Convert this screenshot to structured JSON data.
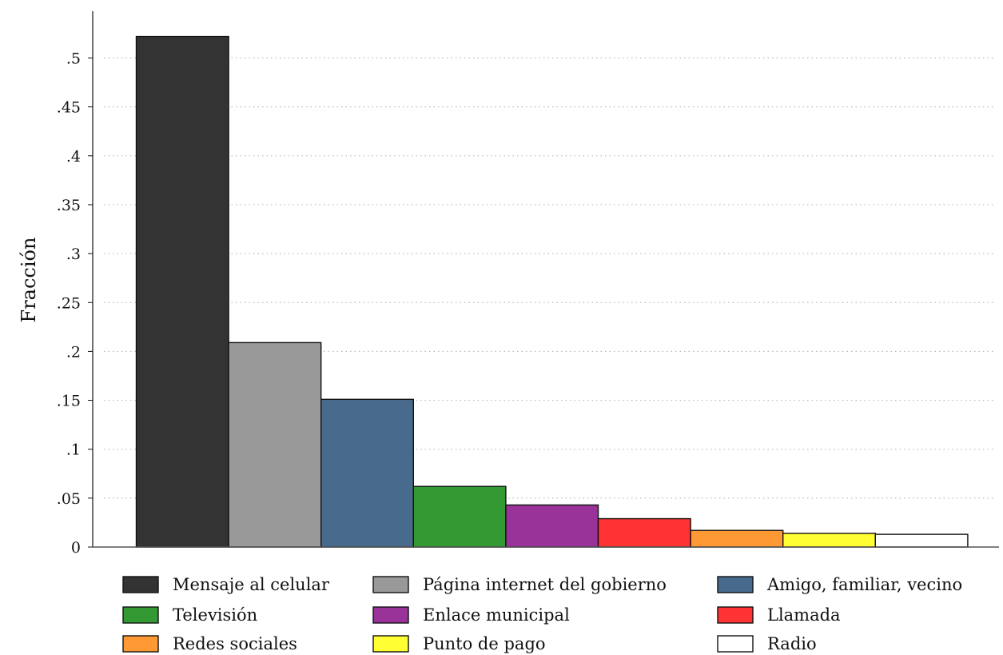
{
  "chart_data": {
    "type": "bar",
    "ylabel": "Fracción",
    "xlabel": "",
    "ylim": [
      0,
      0.54
    ],
    "yticks": [
      {
        "value": 0,
        "label": "0"
      },
      {
        "value": 0.05,
        "label": ".05"
      },
      {
        "value": 0.1,
        "label": ".1"
      },
      {
        "value": 0.15,
        "label": ".15"
      },
      {
        "value": 0.2,
        "label": ".2"
      },
      {
        "value": 0.25,
        "label": ".25"
      },
      {
        "value": 0.3,
        "label": ".3"
      },
      {
        "value": 0.35,
        "label": ".35"
      },
      {
        "value": 0.4,
        "label": ".4"
      },
      {
        "value": 0.45,
        "label": ".45"
      },
      {
        "value": 0.5,
        "label": ".5"
      }
    ],
    "grid": "horizontal-dotted",
    "legend_position": "bottom",
    "series": [
      {
        "name": "Mensaje al celular",
        "value": 0.522,
        "color": "#333333"
      },
      {
        "name": "Página internet del gobierno",
        "value": 0.209,
        "color": "#999999"
      },
      {
        "name": "Amigo, familiar, vecino",
        "value": 0.151,
        "color": "#486a8c"
      },
      {
        "name": "Televisión",
        "value": 0.062,
        "color": "#339933"
      },
      {
        "name": "Enlace municipal",
        "value": 0.043,
        "color": "#993399"
      },
      {
        "name": "Llamada",
        "value": 0.029,
        "color": "#ff3333"
      },
      {
        "name": "Redes sociales",
        "value": 0.017,
        "color": "#ff9933"
      },
      {
        "name": "Punto de pago",
        "value": 0.014,
        "color": "#ffff33"
      },
      {
        "name": "Radio",
        "value": 0.013,
        "color": "#ffffff"
      }
    ]
  }
}
